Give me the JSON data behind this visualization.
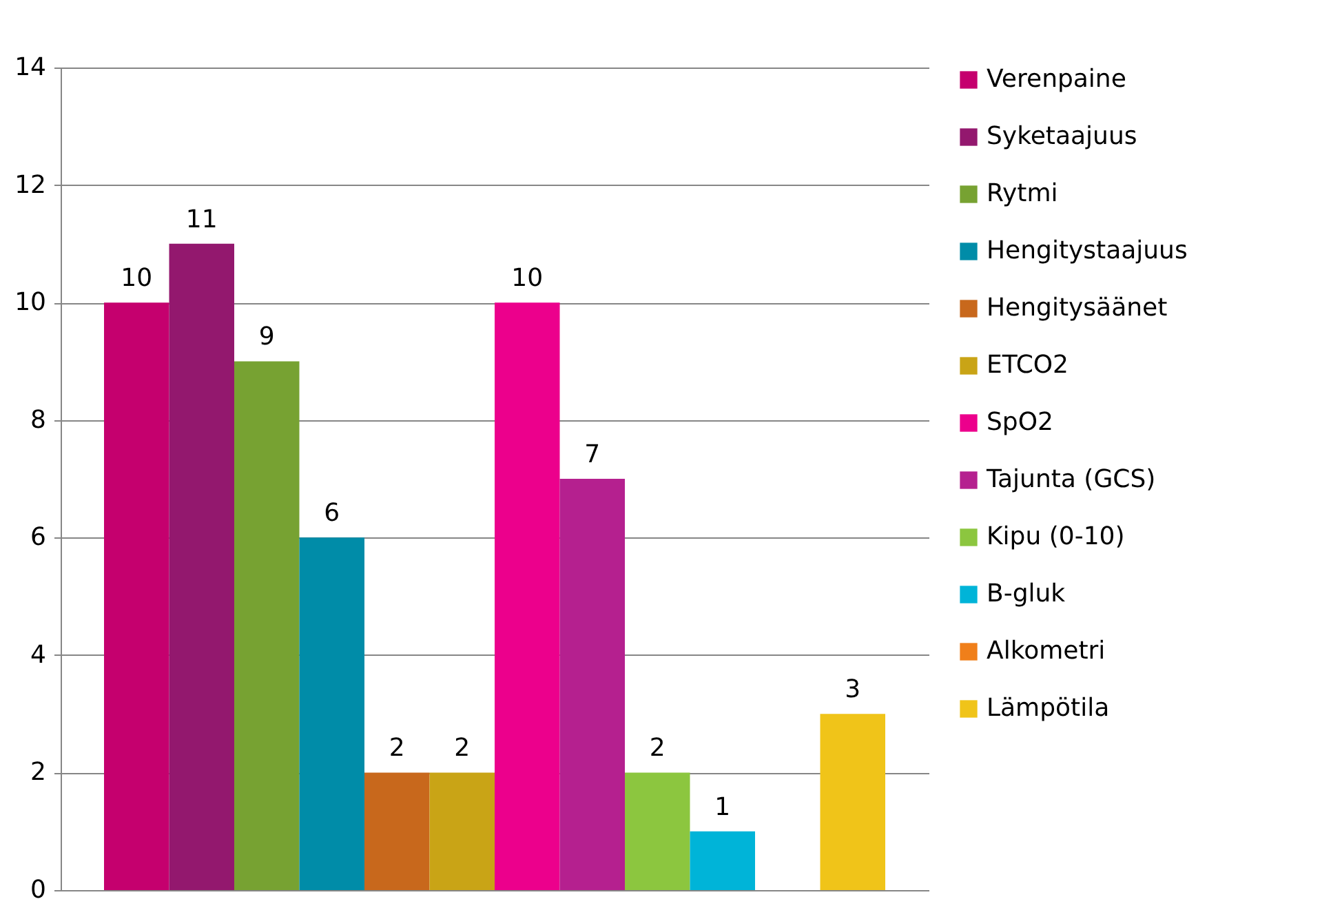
{
  "chart_data": {
    "type": "bar",
    "categories": [
      null
    ],
    "series": [
      {
        "name": "Verenpaine",
        "color": "#c5006e",
        "values": [
          10
        ]
      },
      {
        "name": "Syketaajuus",
        "color": "#93186e",
        "values": [
          11
        ]
      },
      {
        "name": "Rytmi",
        "color": "#77a232",
        "values": [
          9
        ]
      },
      {
        "name": "Hengitystaajuus",
        "color": "#008ca8",
        "values": [
          6
        ]
      },
      {
        "name": "Hengitysäänet",
        "color": "#c8681c",
        "values": [
          2
        ]
      },
      {
        "name": "ETCO2",
        "color": "#c9a416",
        "values": [
          2
        ]
      },
      {
        "name": "SpO2",
        "color": "#ec008c",
        "values": [
          10
        ]
      },
      {
        "name": "Tajunta (GCS)",
        "color": "#b5208f",
        "values": [
          7
        ]
      },
      {
        "name": "Kipu (0-10)",
        "color": "#8cc63f",
        "values": [
          2
        ]
      },
      {
        "name": "B-gluk",
        "color": "#00b4d8",
        "values": [
          1
        ]
      },
      {
        "name": "Alkometri",
        "color": "#f07f1a",
        "values": [
          null
        ]
      },
      {
        "name": "Lämpötila",
        "color": "#f0c419",
        "values": [
          3
        ]
      }
    ],
    "ylim": [
      0,
      14
    ],
    "yticks": [
      0,
      2,
      4,
      6,
      8,
      10,
      12,
      14
    ],
    "grid": "y",
    "legend": "right",
    "data_labels": true,
    "tick_labels": "y"
  }
}
